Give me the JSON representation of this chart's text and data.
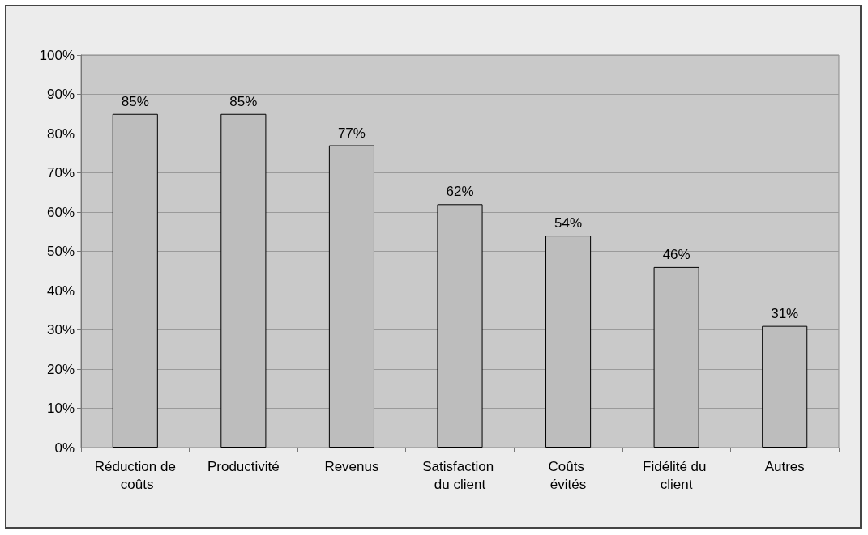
{
  "chart_data": {
    "type": "bar",
    "categories": [
      "Réduction de coûts",
      "Productivité",
      "Revenus",
      "Satisfaction du client",
      "Coûts évités",
      "Fidélité du client",
      "Autres"
    ],
    "values": [
      85,
      85,
      77,
      62,
      54,
      46,
      31
    ],
    "value_labels": [
      "85%",
      "85%",
      "77%",
      "62%",
      "54%",
      "46%",
      "31%"
    ],
    "color": "#bdbdbd",
    "ylim": [
      0,
      100
    ],
    "yticks": [
      {
        "value": 0,
        "label": "0%"
      },
      {
        "value": 10,
        "label": "10%"
      },
      {
        "value": 20,
        "label": "20%"
      },
      {
        "value": 30,
        "label": "30%"
      },
      {
        "value": 40,
        "label": "40%"
      },
      {
        "value": 50,
        "label": "50%"
      },
      {
        "value": 60,
        "label": "60%"
      },
      {
        "value": 70,
        "label": "70%"
      },
      {
        "value": 80,
        "label": "80%"
      },
      {
        "value": 90,
        "label": "90%"
      },
      {
        "value": 100,
        "label": "100%"
      }
    ],
    "grid": "y"
  }
}
